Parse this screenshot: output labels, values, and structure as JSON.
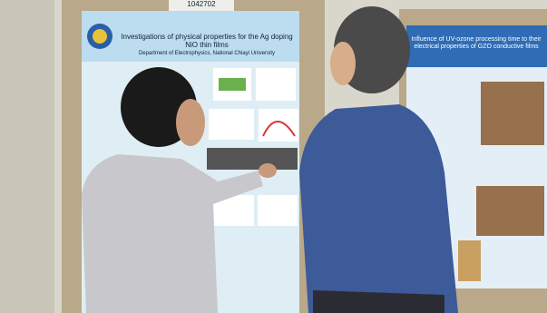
{
  "left_poster": {
    "tag": "1042702",
    "title_en": "Investigations of physical properties for the Ag doping NiO thin films",
    "department": "Department of Electrophysics, National Chiayi University"
  },
  "right_poster": {
    "title_en": "Influence of UV-ozone processing time to their electrical properties of GZO conductive films"
  }
}
